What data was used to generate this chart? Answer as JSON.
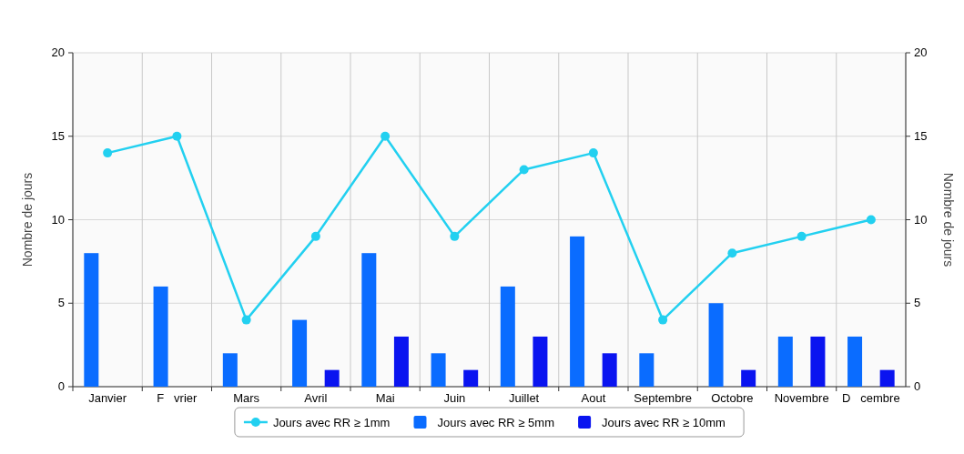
{
  "chart_data": {
    "type": "bar",
    "ylabel": "Nombre de jours",
    "y2label": "Nombre de jours",
    "categories": [
      "Janvier",
      "F   vrier",
      "Mars",
      "Avril",
      "Mai",
      "Juin",
      "Juillet",
      "Aout",
      "Septembre",
      "Octobre",
      "Novembre",
      "D   cembre"
    ],
    "series": [
      {
        "name": "Jours avec RR ≥ 1mm",
        "type": "line",
        "color": "#22d0f0",
        "values": [
          14,
          15,
          4,
          9,
          15,
          9,
          13,
          14,
          4,
          8,
          9,
          10
        ]
      },
      {
        "name": "Jours avec RR ≥ 5mm",
        "color": "#0a6cff",
        "values": [
          8,
          6,
          2,
          4,
          8,
          2,
          6,
          9,
          2,
          5,
          3,
          3
        ]
      },
      {
        "name": "Jours avec RR ≥ 10mm",
        "color": "#0a14f0",
        "values": [
          0,
          0,
          0,
          1,
          3,
          1,
          3,
          2,
          0,
          1,
          3,
          1
        ]
      }
    ],
    "ylim": [
      0,
      20
    ],
    "yticks": [
      0,
      5,
      10,
      15,
      20
    ],
    "y2lim": [
      0,
      20
    ],
    "y2ticks": [
      0,
      5,
      10,
      15,
      20
    ],
    "grid": true,
    "legend": "bottom",
    "marker": "circle"
  }
}
